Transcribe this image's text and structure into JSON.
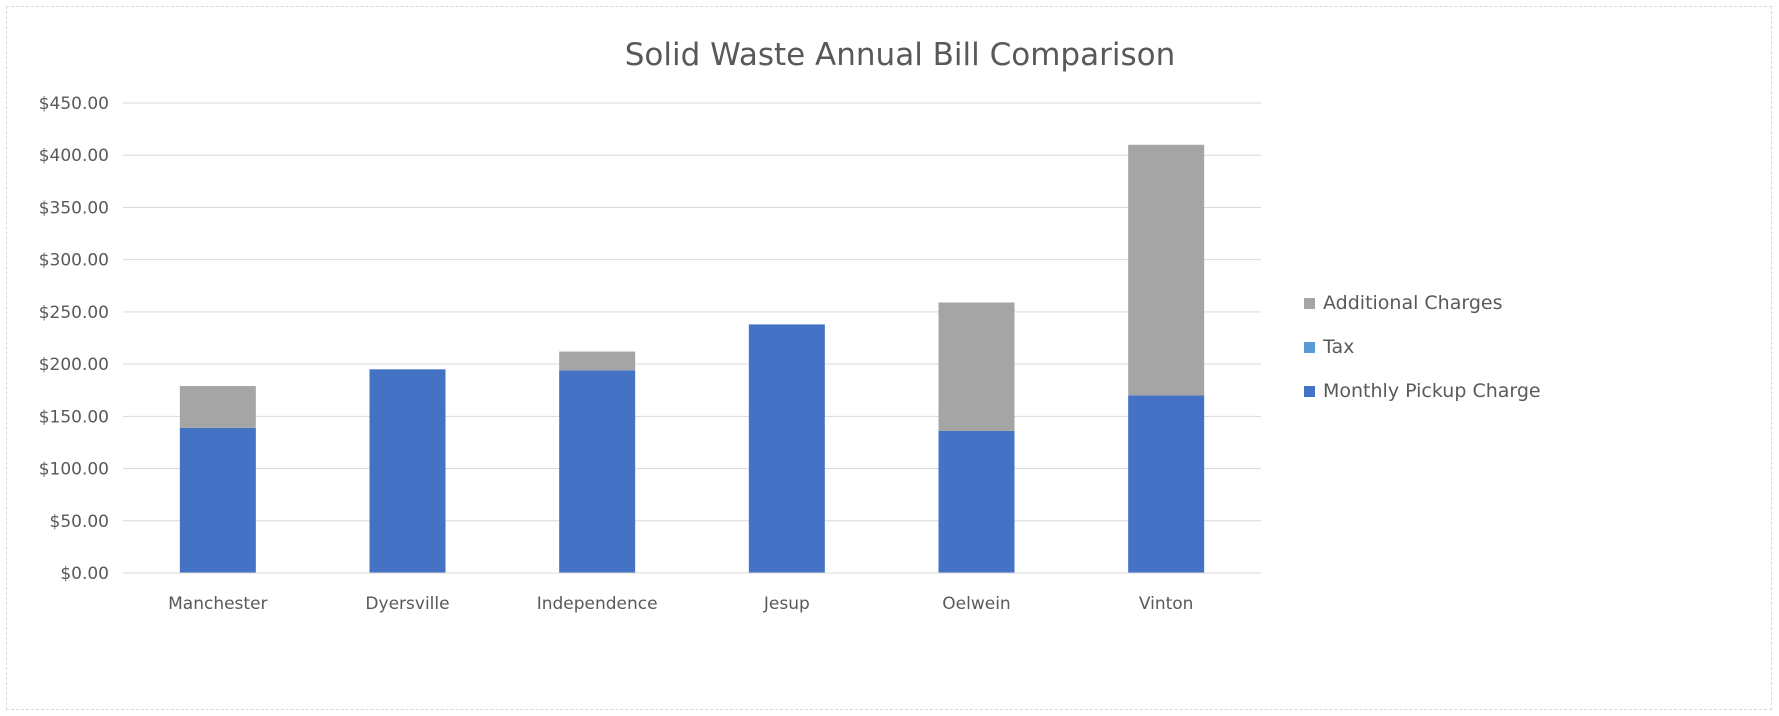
{
  "chart_data": {
    "type": "bar",
    "stacked": true,
    "title": "Solid Waste Annual Bill Comparison",
    "xlabel": "",
    "ylabel": "",
    "categories": [
      "Manchester",
      "Dyersville",
      "Independence",
      "Jesup",
      "Oelwein",
      "Vinton"
    ],
    "ylim": [
      0,
      450
    ],
    "yticks": [
      0,
      50,
      100,
      150,
      200,
      250,
      300,
      350,
      400,
      450
    ],
    "ytick_labels": [
      "$0.00",
      "$50.00",
      "$100.00",
      "$150.00",
      "$200.00",
      "$250.00",
      "$300.00",
      "$350.00",
      "$400.00",
      "$450.00"
    ],
    "grid": true,
    "legend_position": "right",
    "series": [
      {
        "name": "Monthly Pickup Charge",
        "color": "#4472c4",
        "values": [
          139,
          195,
          194,
          238,
          136,
          170
        ]
      },
      {
        "name": "Tax",
        "color": "#5b9bd5",
        "values": [
          0,
          0,
          0,
          0,
          0,
          0
        ]
      },
      {
        "name": "Additional Charges",
        "color": "#a5a5a5",
        "values": [
          40,
          0,
          18,
          0,
          123,
          240
        ]
      }
    ],
    "legend_order": [
      "Additional Charges",
      "Tax",
      "Monthly Pickup Charge"
    ]
  }
}
